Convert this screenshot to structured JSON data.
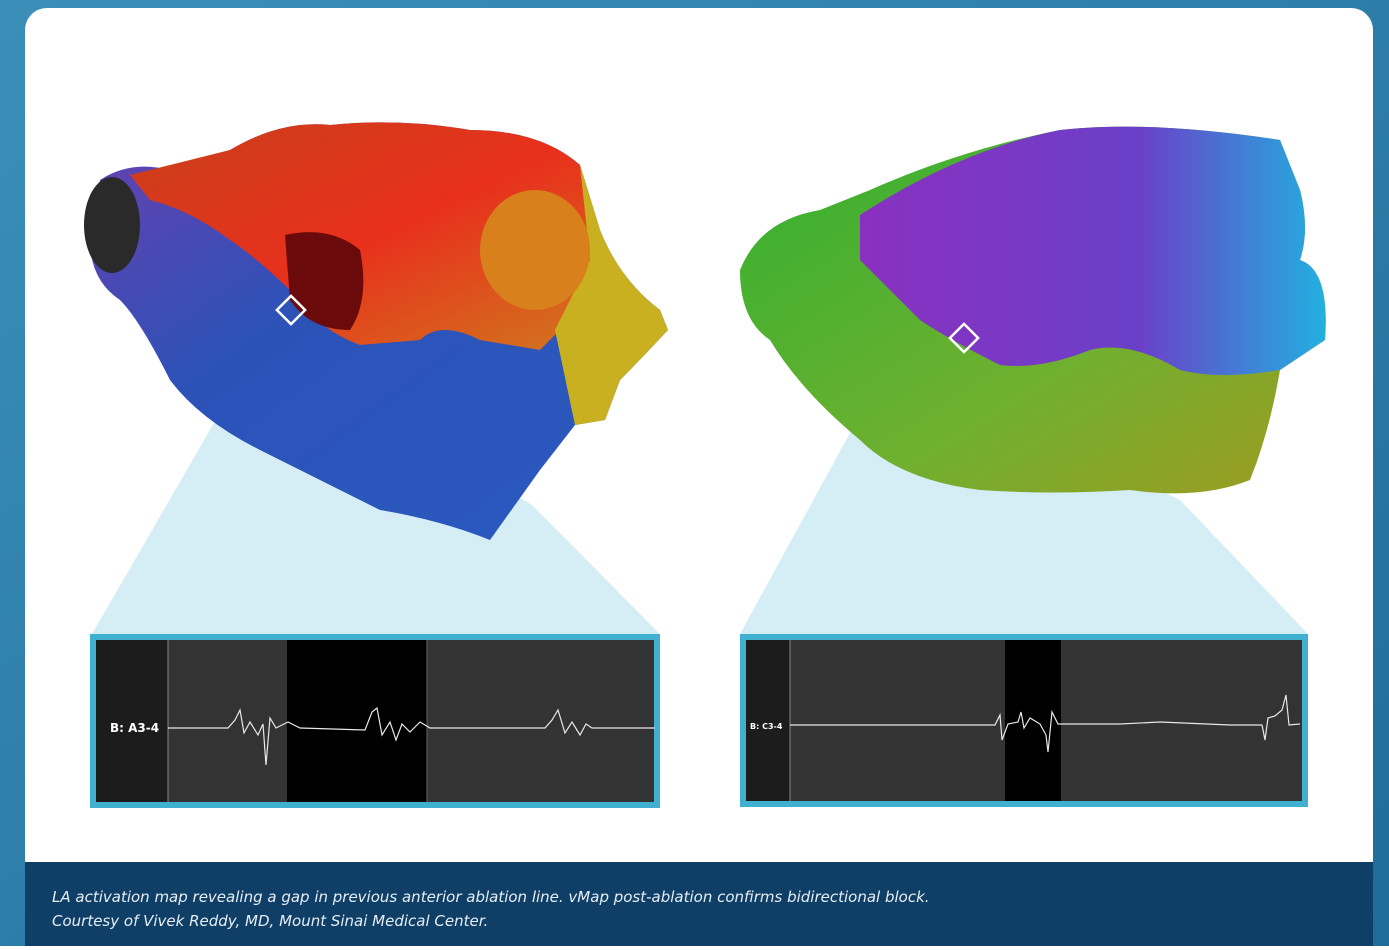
{
  "figure": {
    "left_panel": {
      "label": "B: A3-4"
    },
    "right_panel": {
      "label": "B: C3-4"
    }
  },
  "caption": {
    "lines": [
      "LA activation map revealing a gap in previous anterior ablation line. vMap post-ablation confirms bidirectional block.",
      "Courtesy of Vivek Reddy, MD, Mount Sinai Medical Center."
    ]
  }
}
